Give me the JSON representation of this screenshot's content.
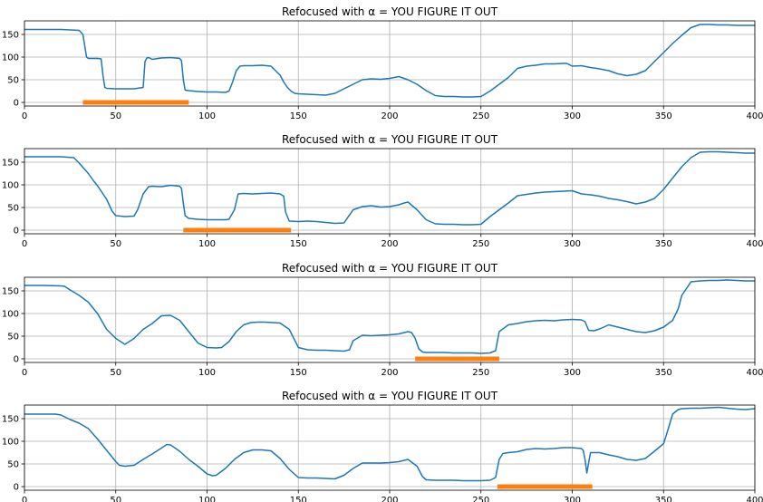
{
  "chart_data": [
    {
      "type": "line",
      "title": "Refocused with α = YOU FIGURE IT OUT",
      "xlim": [
        0,
        400
      ],
      "ylim": [
        -8,
        180
      ],
      "xticks": [
        0,
        50,
        100,
        150,
        200,
        250,
        300,
        350,
        400
      ],
      "yticks": [
        0,
        50,
        100,
        150
      ],
      "grid": true,
      "colors": {
        "line": "#1f77b4",
        "highlight": "#ff7f0e"
      },
      "highlight": {
        "x": [
          32,
          90
        ],
        "y": 0
      },
      "x": [
        0,
        10,
        20,
        25,
        30,
        32,
        33,
        34,
        35,
        40,
        42,
        43,
        44,
        45,
        50,
        55,
        60,
        65,
        66,
        67,
        68,
        70,
        75,
        80,
        85,
        86,
        87,
        88,
        90,
        95,
        100,
        105,
        110,
        112,
        114,
        116,
        118,
        120,
        125,
        130,
        135,
        140,
        142,
        144,
        146,
        148,
        150,
        155,
        160,
        165,
        170,
        175,
        180,
        185,
        190,
        195,
        200,
        205,
        210,
        215,
        220,
        225,
        230,
        235,
        240,
        245,
        250,
        255,
        260,
        265,
        270,
        275,
        280,
        285,
        290,
        295,
        297,
        300,
        305,
        310,
        315,
        320,
        325,
        330,
        335,
        340,
        345,
        350,
        355,
        360,
        365,
        370,
        375,
        380,
        385,
        390,
        395,
        400
      ],
      "y": [
        161,
        161,
        161,
        160,
        159,
        150,
        125,
        100,
        97,
        97,
        96,
        60,
        33,
        31,
        30,
        30,
        30,
        33,
        90,
        98,
        99,
        95,
        98,
        99,
        97,
        92,
        50,
        27,
        26,
        24,
        23,
        23,
        22,
        25,
        45,
        70,
        80,
        81,
        81,
        82,
        80,
        60,
        45,
        33,
        25,
        20,
        19,
        18,
        17,
        16,
        20,
        30,
        40,
        50,
        52,
        51,
        53,
        57,
        50,
        40,
        26,
        15,
        13,
        13,
        12,
        12,
        13,
        25,
        40,
        55,
        75,
        80,
        82,
        85,
        85,
        86,
        86,
        80,
        81,
        77,
        74,
        70,
        63,
        59,
        62,
        70,
        90,
        110,
        130,
        148,
        165,
        172,
        172,
        171,
        171,
        170,
        170,
        170
      ]
    },
    {
      "type": "line",
      "title": "Refocused with α = YOU FIGURE IT OUT",
      "xlim": [
        0,
        400
      ],
      "ylim": [
        -8,
        180
      ],
      "xticks": [
        0,
        50,
        100,
        150,
        200,
        250,
        300,
        350,
        400
      ],
      "yticks": [
        0,
        50,
        100,
        150
      ],
      "grid": true,
      "colors": {
        "line": "#1f77b4",
        "highlight": "#ff7f0e"
      },
      "highlight": {
        "x": [
          87,
          146
        ],
        "y": 0
      },
      "x": [
        0,
        10,
        20,
        27,
        30,
        35,
        38,
        40,
        45,
        48,
        50,
        55,
        60,
        62,
        65,
        68,
        70,
        75,
        80,
        85,
        86,
        87,
        88,
        90,
        95,
        100,
        105,
        110,
        112,
        115,
        117,
        120,
        125,
        130,
        135,
        140,
        142,
        143,
        145,
        150,
        155,
        160,
        165,
        170,
        175,
        180,
        185,
        190,
        195,
        200,
        205,
        208,
        210,
        215,
        220,
        225,
        230,
        235,
        240,
        245,
        250,
        255,
        260,
        265,
        270,
        275,
        280,
        285,
        290,
        295,
        300,
        305,
        310,
        315,
        320,
        325,
        330,
        335,
        340,
        345,
        350,
        355,
        360,
        365,
        370,
        375,
        380,
        385,
        390,
        395,
        400
      ],
      "y": [
        162,
        162,
        162,
        160,
        148,
        125,
        108,
        98,
        68,
        42,
        32,
        30,
        31,
        45,
        80,
        96,
        97,
        96,
        99,
        97,
        92,
        60,
        32,
        26,
        24,
        23,
        23,
        23,
        24,
        45,
        80,
        81,
        80,
        81,
        82,
        80,
        75,
        40,
        20,
        19,
        20,
        19,
        17,
        15,
        16,
        45,
        52,
        54,
        51,
        52,
        56,
        60,
        62,
        45,
        23,
        14,
        13,
        13,
        12,
        12,
        13,
        30,
        45,
        60,
        76,
        79,
        82,
        84,
        85,
        86,
        87,
        80,
        78,
        75,
        70,
        67,
        63,
        58,
        62,
        70,
        90,
        115,
        140,
        160,
        172,
        173,
        173,
        172,
        171,
        170,
        170
      ]
    },
    {
      "type": "line",
      "title": "Refocused with α = YOU FIGURE IT OUT",
      "xlim": [
        0,
        400
      ],
      "ylim": [
        -8,
        180
      ],
      "xticks": [
        0,
        50,
        100,
        150,
        200,
        250,
        300,
        350,
        400
      ],
      "yticks": [
        0,
        50,
        100,
        150
      ],
      "grid": true,
      "colors": {
        "line": "#1f77b4",
        "highlight": "#ff7f0e"
      },
      "highlight": {
        "x": [
          214,
          260
        ],
        "y": 0
      },
      "x": [
        0,
        10,
        20,
        22,
        25,
        30,
        35,
        40,
        45,
        50,
        55,
        60,
        65,
        70,
        75,
        80,
        85,
        90,
        95,
        100,
        105,
        108,
        112,
        116,
        120,
        124,
        128,
        132,
        136,
        140,
        145,
        150,
        155,
        160,
        165,
        170,
        175,
        178,
        180,
        185,
        190,
        195,
        200,
        205,
        210,
        212,
        214,
        216,
        218,
        220,
        225,
        230,
        235,
        240,
        245,
        250,
        255,
        258,
        260,
        265,
        270,
        275,
        280,
        285,
        290,
        295,
        300,
        305,
        307,
        309,
        312,
        315,
        320,
        325,
        330,
        335,
        340,
        345,
        350,
        355,
        358,
        360,
        365,
        370,
        375,
        380,
        385,
        390,
        395,
        400
      ],
      "y": [
        162,
        162,
        161,
        160,
        152,
        140,
        125,
        100,
        65,
        45,
        32,
        45,
        65,
        78,
        95,
        96,
        85,
        60,
        35,
        25,
        24,
        25,
        38,
        60,
        75,
        80,
        81,
        81,
        80,
        79,
        65,
        25,
        20,
        19,
        19,
        18,
        17,
        20,
        40,
        52,
        51,
        52,
        53,
        55,
        60,
        58,
        45,
        22,
        15,
        14,
        14,
        14,
        13,
        13,
        13,
        12,
        13,
        18,
        60,
        75,
        78,
        82,
        84,
        85,
        84,
        86,
        87,
        86,
        82,
        63,
        62,
        66,
        75,
        70,
        65,
        60,
        58,
        62,
        70,
        85,
        110,
        140,
        170,
        172,
        173,
        173,
        174,
        173,
        172,
        172
      ]
    },
    {
      "type": "line",
      "title": "Refocused with α = YOU FIGURE IT OUT",
      "xlim": [
        0,
        400
      ],
      "ylim": [
        -8,
        180
      ],
      "xticks": [
        0,
        50,
        100,
        150,
        200,
        250,
        300,
        350,
        400
      ],
      "yticks": [
        0,
        50,
        100,
        150
      ],
      "grid": true,
      "colors": {
        "line": "#1f77b4",
        "highlight": "#ff7f0e"
      },
      "highlight": {
        "x": [
          259,
          311
        ],
        "y": 0
      },
      "x": [
        0,
        10,
        17,
        20,
        25,
        30,
        35,
        40,
        45,
        50,
        52,
        55,
        60,
        65,
        70,
        75,
        78,
        80,
        85,
        90,
        95,
        100,
        103,
        105,
        110,
        115,
        120,
        125,
        130,
        135,
        140,
        145,
        150,
        155,
        160,
        165,
        170,
        175,
        180,
        185,
        190,
        195,
        200,
        205,
        210,
        215,
        218,
        220,
        225,
        230,
        235,
        240,
        245,
        250,
        255,
        258,
        260,
        262,
        265,
        270,
        275,
        280,
        285,
        290,
        295,
        300,
        305,
        306,
        307,
        308,
        310,
        315,
        320,
        325,
        330,
        335,
        340,
        345,
        350,
        352,
        355,
        358,
        360,
        365,
        370,
        375,
        380,
        385,
        390,
        395,
        400
      ],
      "y": [
        160,
        160,
        160,
        158,
        148,
        140,
        128,
        105,
        80,
        55,
        47,
        45,
        47,
        60,
        72,
        85,
        93,
        92,
        78,
        60,
        45,
        28,
        24,
        25,
        40,
        60,
        75,
        81,
        81,
        79,
        62,
        38,
        20,
        19,
        19,
        18,
        17,
        25,
        40,
        52,
        52,
        52,
        53,
        55,
        60,
        45,
        22,
        15,
        14,
        14,
        14,
        13,
        13,
        13,
        14,
        20,
        60,
        73,
        75,
        77,
        82,
        84,
        83,
        84,
        86,
        86,
        84,
        80,
        60,
        30,
        75,
        75,
        70,
        66,
        60,
        58,
        62,
        78,
        95,
        120,
        160,
        170,
        172,
        173,
        173,
        174,
        175,
        173,
        171,
        170,
        172
      ]
    }
  ]
}
